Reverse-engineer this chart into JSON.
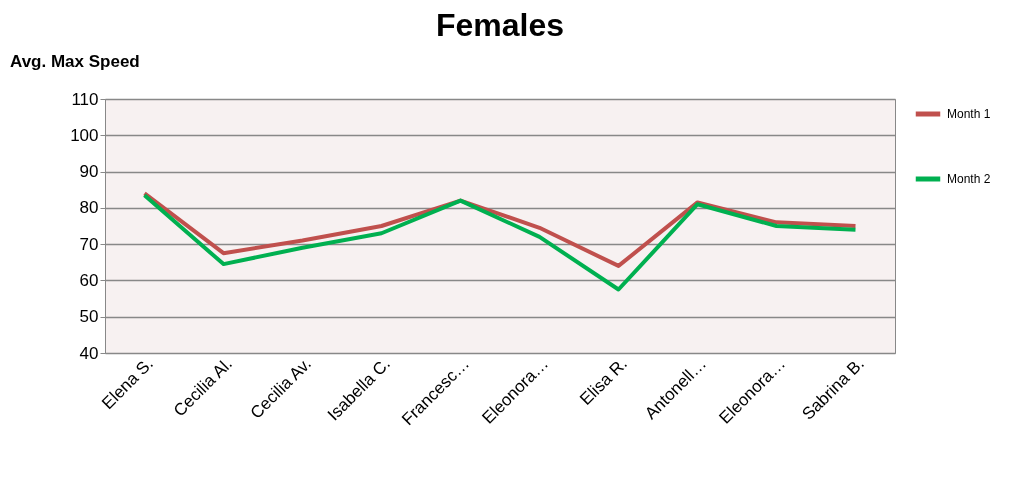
{
  "chart_data": {
    "type": "line",
    "title": "Females",
    "ylabel": "Avg. Max Speed",
    "categories": [
      "Elena S.",
      "Cecilia Al.",
      "Cecilia Av.",
      "Isabella C.",
      "Francesc…",
      "Eleonora…",
      "Elisa R.",
      "Antonell…",
      "Eleonora…",
      "Sabrina B."
    ],
    "series": [
      {
        "name": "Month 1",
        "color": "#c0504d",
        "values": [
          84,
          67.5,
          71,
          75,
          82,
          74.5,
          64,
          81.5,
          76,
          75
        ]
      },
      {
        "name": "Month 2",
        "color": "#00b050",
        "values": [
          83.5,
          64.5,
          69,
          73,
          82,
          72,
          57.5,
          81,
          75,
          74
        ]
      }
    ],
    "ylim": [
      40,
      110
    ],
    "yticks": [
      40,
      50,
      60,
      70,
      80,
      90,
      100,
      110
    ],
    "grid": "y",
    "legend": "right",
    "marker": "none",
    "line_style": "solid"
  }
}
